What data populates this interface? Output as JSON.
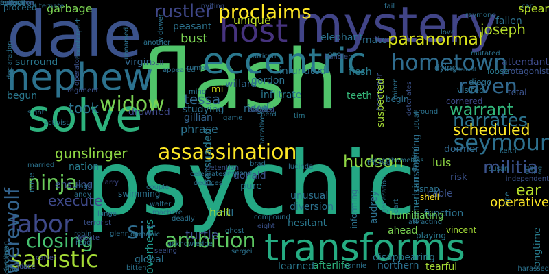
{
  "words": [
    {
      "text": "psychic",
      "color": "#24a884"
    },
    {
      "text": "flash",
      "color": "#50c46a"
    },
    {
      "text": "dale",
      "color": "#3b528b"
    },
    {
      "text": "mystery",
      "color": "#414487"
    },
    {
      "text": "transforms",
      "color": "#25ac82"
    },
    {
      "text": "solve",
      "color": "#2db27d"
    },
    {
      "text": "nephew",
      "color": "#2c728e"
    },
    {
      "text": "eccentric",
      "color": "#2a788e"
    },
    {
      "text": "host",
      "color": "#46337e"
    },
    {
      "text": "assassination",
      "color": "#fde725"
    },
    {
      "text": "hometown",
      "color": "#2f6c8e"
    },
    {
      "text": "raven",
      "color": "#31688e"
    },
    {
      "text": "seymour",
      "color": "#2d708e"
    },
    {
      "text": "ambition",
      "color": "#5ec962"
    },
    {
      "text": "sadistic",
      "color": "#a5db36"
    },
    {
      "text": "widow",
      "color": "#7ad151"
    },
    {
      "text": "ninja",
      "color": "#6ccd5a"
    },
    {
      "text": "labor",
      "color": "#3e4989"
    },
    {
      "text": "sir",
      "color": "#2f6c8e"
    },
    {
      "text": "werewolf",
      "color": "#33638d"
    },
    {
      "text": "proclaims",
      "color": "#fde725"
    },
    {
      "text": "rustler",
      "color": "#3f4788"
    },
    {
      "text": "paranormal",
      "color": "#d8e219"
    },
    {
      "text": "closing",
      "color": "#46c06f"
    },
    {
      "text": "execute",
      "color": "#3e4989"
    },
    {
      "text": "warrant",
      "color": "#32b67a"
    },
    {
      "text": "narrates",
      "color": "#2c738e"
    },
    {
      "text": "scheduled",
      "color": "#fde725"
    },
    {
      "text": "militia",
      "color": "#3b528b"
    },
    {
      "text": "gunslinger",
      "color": "#8fd744"
    },
    {
      "text": "hudson",
      "color": "#8fd744"
    },
    {
      "text": "joseph",
      "color": "#b5de2b"
    },
    {
      "text": "tessa",
      "color": "#31688e"
    },
    {
      "text": "persuaded",
      "color": "#2a788e"
    },
    {
      "text": "took",
      "color": "#2c728e"
    },
    {
      "text": "overhears",
      "color": "#1f988b"
    },
    {
      "text": "turtle",
      "color": "#3b528b"
    },
    {
      "text": "ear",
      "color": "#b5de2b"
    },
    {
      "text": "operative",
      "color": "#fde725"
    },
    {
      "text": "garbage",
      "color": "#7ad151"
    },
    {
      "text": "bust",
      "color": "#7ad151"
    },
    {
      "text": "virgin",
      "color": "#31688e"
    },
    {
      "text": "surround",
      "color": "#2a788e"
    },
    {
      "text": "begun",
      "color": "#2a788e"
    },
    {
      "text": "unique",
      "color": "#bddf26"
    },
    {
      "text": "peasant",
      "color": "#2c728e"
    },
    {
      "text": "willard",
      "color": "#31688e"
    },
    {
      "text": "mate",
      "color": "#2d708e"
    },
    {
      "text": "elephant",
      "color": "#2c728e"
    },
    {
      "text": "attendant",
      "color": "#3e4a89"
    },
    {
      "text": "fallen",
      "color": "#2d708e"
    },
    {
      "text": "spear",
      "color": "#b5de2b"
    },
    {
      "text": "flesh",
      "color": "#287c8e"
    },
    {
      "text": "infuriated",
      "color": "#2d708e"
    },
    {
      "text": "infiltrate",
      "color": "#2a788e"
    },
    {
      "text": "gordon",
      "color": "#2c728e"
    },
    {
      "text": "gillian",
      "color": "#33638d"
    },
    {
      "text": "studying",
      "color": "#2d708e"
    },
    {
      "text": "phrase",
      "color": "#2c728e"
    },
    {
      "text": "ridge",
      "color": "#2d708e"
    },
    {
      "text": "teeth",
      "color": "#35b779"
    },
    {
      "text": "teenager",
      "color": "#3b528b"
    },
    {
      "text": "suspected",
      "color": "#a5db36"
    },
    {
      "text": "luis",
      "color": "#8fd744"
    },
    {
      "text": "dormer",
      "color": "#31688e"
    },
    {
      "text": "risk",
      "color": "#3b528b"
    },
    {
      "text": "unusual",
      "color": "#2d708e"
    },
    {
      "text": "diversion",
      "color": "#2c728e"
    },
    {
      "text": "hesitant",
      "color": "#2a788e"
    },
    {
      "text": "audrey",
      "color": "#2d708e"
    },
    {
      "text": "dimension",
      "color": "#2a788e"
    },
    {
      "text": "cable",
      "color": "#3b528b"
    },
    {
      "text": "function",
      "color": "#2c728e"
    },
    {
      "text": "ahead",
      "color": "#7ad151"
    },
    {
      "text": "humiliating",
      "color": "#6ccd5a"
    },
    {
      "text": "donald",
      "color": "#3b528b"
    },
    {
      "text": "pure",
      "color": "#2a788e"
    },
    {
      "text": "ensuing",
      "color": "#3b528b"
    },
    {
      "text": "nation",
      "color": "#287c8e"
    },
    {
      "text": "mill",
      "color": "#2c728e"
    },
    {
      "text": "halt",
      "color": "#a5db36"
    },
    {
      "text": "global",
      "color": "#2c728e"
    },
    {
      "text": "learned",
      "color": "#2a788e"
    },
    {
      "text": "afterlife",
      "color": "#2db27d"
    },
    {
      "text": "northern",
      "color": "#2d708e"
    },
    {
      "text": "tearful",
      "color": "#a5db36"
    },
    {
      "text": "longtime",
      "color": "#287c8e"
    },
    {
      "text": "vincent",
      "color": "#a5db36"
    },
    {
      "text": "playing",
      "color": "#2a788e"
    },
    {
      "text": "disappearing",
      "color": "#2a788e"
    },
    {
      "text": "informing",
      "color": "#2c728e"
    },
    {
      "text": "transforming",
      "color": "#2d708e"
    },
    {
      "text": "mi",
      "color": "#d8e219"
    },
    {
      "text": "visited",
      "color": "#2c728e"
    },
    {
      "text": "total",
      "color": "#3b528b"
    },
    {
      "text": "cornered",
      "color": "#3e4989"
    },
    {
      "text": "diego",
      "color": "#2d708e"
    },
    {
      "text": "protagonist",
      "color": "#3b528b"
    },
    {
      "text": "detained",
      "color": "#2d708e"
    },
    {
      "text": "dying",
      "color": "#2d708e"
    },
    {
      "text": "loose",
      "color": "#2a788e"
    },
    {
      "text": "shell",
      "color": "#fde725"
    },
    {
      "text": "snap",
      "color": "#2c728e"
    },
    {
      "text": "begin",
      "color": "#2d708e"
    },
    {
      "text": "african",
      "color": "#2d708e"
    },
    {
      "text": "rumor",
      "color": "#2c728e"
    },
    {
      "text": "mind",
      "color": "#2c728e"
    },
    {
      "text": "drowned",
      "color": "#3e4989"
    },
    {
      "text": "activist",
      "color": "#2c728e"
    },
    {
      "text": "regiment",
      "color": "#3b528b"
    },
    {
      "text": "proceed",
      "color": "#2c728e"
    },
    {
      "text": "operator",
      "color": "#3b528b"
    },
    {
      "text": "another",
      "color": "#2c728e"
    },
    {
      "text": "appeared",
      "color": "#2d708e"
    },
    {
      "text": "pull",
      "color": "#3e4989"
    },
    {
      "text": "unnamed",
      "color": "#2d708e"
    },
    {
      "text": "dubbed",
      "color": "#3b528b"
    },
    {
      "text": "craft",
      "color": "#2a788e"
    },
    {
      "text": "tim",
      "color": "#2a788e"
    },
    {
      "text": "game",
      "color": "#2c728e"
    },
    {
      "text": "herd",
      "color": "#2c728e"
    },
    {
      "text": "respond",
      "color": "#2c728e"
    },
    {
      "text": "lucinda",
      "color": "#2d708e"
    },
    {
      "text": "deserthomeless",
      "color": "#2a788e"
    },
    {
      "text": "tricked",
      "color": "#2d708e"
    },
    {
      "text": "susan",
      "color": "#2c728e"
    },
    {
      "text": "celebrates",
      "color": "#2d708e"
    },
    {
      "text": "deduces",
      "color": "#2d708e"
    },
    {
      "text": "independent",
      "color": "#3b528b"
    },
    {
      "text": "swimming",
      "color": "#2c728e"
    },
    {
      "text": "sergei",
      "color": "#2c728e"
    },
    {
      "text": "ghost",
      "color": "#2c728e"
    },
    {
      "text": "compound",
      "color": "#2c728e"
    },
    {
      "text": "deadly",
      "color": "#2c728e"
    },
    {
      "text": "larry",
      "color": "#3e4989"
    },
    {
      "text": "lunge",
      "color": "#2d708e"
    },
    {
      "text": "cage",
      "color": "#2d708e"
    },
    {
      "text": "andy",
      "color": "#2c728e"
    },
    {
      "text": "married",
      "color": "#2c728e"
    },
    {
      "text": "niece",
      "color": "#3b528b"
    },
    {
      "text": "carter",
      "color": "#3e4989"
    },
    {
      "text": "terrorist",
      "color": "#3b528b"
    },
    {
      "text": "robin",
      "color": "#2d708e"
    },
    {
      "text": "debate",
      "color": "#3b528b"
    },
    {
      "text": "read",
      "color": "#2c728e"
    },
    {
      "text": "demonic",
      "color": "#2c728e"
    },
    {
      "text": "acknowledge",
      "color": "#2c728e"
    },
    {
      "text": "seeing",
      "color": "#3b528b"
    },
    {
      "text": "bitten",
      "color": "#2c728e"
    },
    {
      "text": "bonnie",
      "color": "#2c728e"
    },
    {
      "text": "harassed",
      "color": "#2c728e"
    },
    {
      "text": "scar",
      "color": "#3b528b"
    },
    {
      "text": "sharon",
      "color": "#2c728e"
    },
    {
      "text": "caroline",
      "color": "#2c728e"
    },
    {
      "text": "glenn",
      "color": "#2d708e"
    },
    {
      "text": "walter",
      "color": "#2c728e"
    },
    {
      "text": "couple",
      "color": "#2c728e"
    },
    {
      "text": "vine",
      "color": "#2c728e"
    },
    {
      "text": "sight",
      "color": "#2c728e"
    },
    {
      "text": "nose",
      "color": "#2c728e"
    },
    {
      "text": "generation",
      "color": "#2c728e"
    },
    {
      "text": "gene",
      "color": "#2c728e"
    },
    {
      "text": "anna",
      "color": "#2c728e"
    },
    {
      "text": "pipe",
      "color": "#2c728e"
    },
    {
      "text": "around",
      "color": "#2c728e"
    },
    {
      "text": "eight",
      "color": "#3b528b"
    },
    {
      "text": "brad",
      "color": "#2c728e"
    },
    {
      "text": "car",
      "color": "#2c728e"
    },
    {
      "text": "raymond",
      "color": "#2c728e"
    },
    {
      "text": "one",
      "color": "#2c728e"
    },
    {
      "text": "fail",
      "color": "#2d708e"
    },
    {
      "text": "love",
      "color": "#2c728e"
    },
    {
      "text": "widower",
      "color": "#2c728e"
    },
    {
      "text": "counterpart",
      "color": "#2c728e"
    },
    {
      "text": "alternate",
      "color": "#2c728e"
    },
    {
      "text": "inviting",
      "color": "#3b528b"
    },
    {
      "text": "detonates",
      "color": "#3b528b"
    },
    {
      "text": "usual",
      "color": "#2c728e"
    },
    {
      "text": "starting",
      "color": "#2c728e"
    },
    {
      "text": "keith",
      "color": "#2c728e"
    },
    {
      "text": "attracting",
      "color": "#2c728e"
    },
    {
      "text": "detention",
      "color": "#3b528b"
    },
    {
      "text": "machete",
      "color": "#2c728e"
    },
    {
      "text": "narrative",
      "color": "#2c728e"
    },
    {
      "text": "handler",
      "color": "#3b528b"
    },
    {
      "text": "mutated",
      "color": "#2c728e"
    },
    {
      "text": "miner",
      "color": "#2c728e"
    },
    {
      "text": "dart",
      "color": "#2c728e"
    },
    {
      "text": "declaration",
      "color": "#2c728e"
    },
    {
      "text": "abduction",
      "color": "#2c728e"
    },
    {
      "text": "transform",
      "color": "#3b528b"
    },
    {
      "text": "festival",
      "color": "#2c728e"
    },
    {
      "text": "parking",
      "color": "#2c728e"
    },
    {
      "text": "patty",
      "color": "#2c728e"
    }
  ]
}
